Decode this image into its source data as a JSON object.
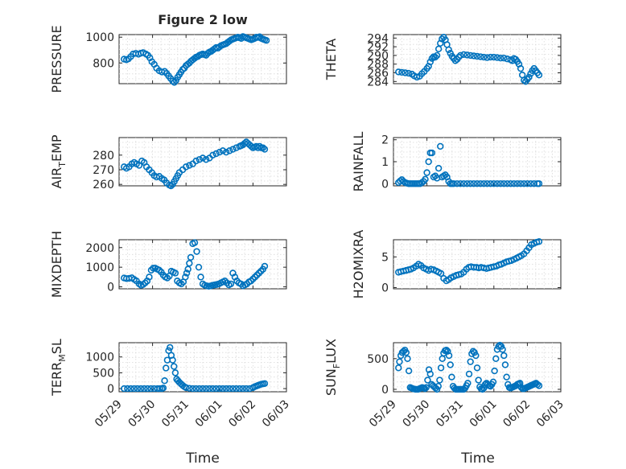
{
  "figure": {
    "title": "Figure 2 low",
    "xlabel": "Time"
  },
  "colors": {
    "marker": "#0072BD",
    "axis": "#262626",
    "grid": "#d9d9d9"
  },
  "x_ticks": [
    "05/29",
    "05/30",
    "05/31",
    "06/01",
    "06/02",
    "06/03"
  ],
  "chart_data": [
    {
      "type": "scatter",
      "marker": "o",
      "title": "Figure 2 low",
      "xlabel": "",
      "ylabel": "PRESSURE",
      "ylabel_sub": "",
      "ylabel_tail": "",
      "ylim": [
        640,
        1020
      ],
      "yticks": [
        800,
        1000
      ],
      "xlim": [
        0,
        5
      ],
      "grid": true,
      "x": [
        0.15,
        0.22,
        0.28,
        0.35,
        0.42,
        0.5,
        0.58,
        0.65,
        0.72,
        0.8,
        0.86,
        0.92,
        0.98,
        1.05,
        1.12,
        1.2,
        1.28,
        1.36,
        1.42,
        1.48,
        1.54,
        1.6,
        1.65,
        1.7,
        1.75,
        1.8,
        1.85,
        1.9,
        1.95,
        2.0,
        2.05,
        2.1,
        2.15,
        2.2,
        2.25,
        2.3,
        2.35,
        2.4,
        2.45,
        2.5,
        2.55,
        2.6,
        2.65,
        2.7,
        2.75,
        2.8,
        2.85,
        2.9,
        2.95,
        3.0,
        3.05,
        3.1,
        3.15,
        3.2,
        3.25,
        3.3,
        3.35,
        3.4,
        3.45,
        3.5,
        3.55,
        3.6,
        3.65,
        3.7,
        3.75,
        3.8,
        3.85,
        3.9,
        3.95,
        4.0,
        4.05,
        4.1,
        4.15,
        4.2,
        4.25,
        4.3,
        4.35,
        4.4
      ],
      "y": [
        830,
        825,
        832,
        850,
        870,
        875,
        868,
        876,
        880,
        870,
        860,
        840,
        810,
        790,
        760,
        740,
        730,
        735,
        720,
        700,
        680,
        660,
        650,
        665,
        690,
        710,
        730,
        750,
        760,
        780,
        790,
        800,
        815,
        825,
        835,
        845,
        850,
        860,
        865,
        870,
        865,
        860,
        875,
        885,
        890,
        900,
        910,
        920,
        915,
        925,
        935,
        940,
        945,
        950,
        960,
        970,
        980,
        985,
        990,
        995,
        1000,
        995,
        990,
        1005,
        1000,
        995,
        990,
        985,
        980,
        985,
        990,
        1000,
        998,
        1003,
        990,
        985,
        980,
        975
      ]
    },
    {
      "type": "scatter",
      "marker": "o",
      "title": "",
      "xlabel": "",
      "ylabel": "THETA",
      "ylabel_sub": "",
      "ylabel_tail": "",
      "ylim": [
        283.5,
        294.8
      ],
      "yticks": [
        284,
        286,
        288,
        290,
        292,
        294
      ],
      "xlim": [
        0,
        5
      ],
      "grid": true,
      "x": [
        0.15,
        0.25,
        0.35,
        0.45,
        0.55,
        0.62,
        0.7,
        0.78,
        0.85,
        0.92,
        1.0,
        1.05,
        1.1,
        1.15,
        1.2,
        1.25,
        1.3,
        1.35,
        1.4,
        1.45,
        1.5,
        1.55,
        1.6,
        1.65,
        1.7,
        1.75,
        1.8,
        1.85,
        1.9,
        1.95,
        2.0,
        2.1,
        2.2,
        2.3,
        2.4,
        2.5,
        2.6,
        2.7,
        2.8,
        2.9,
        3.0,
        3.1,
        3.2,
        3.3,
        3.4,
        3.5,
        3.55,
        3.6,
        3.65,
        3.7,
        3.75,
        3.8,
        3.85,
        3.9,
        3.95,
        4.0,
        4.05,
        4.1,
        4.15,
        4.2,
        4.25,
        4.3,
        4.35
      ],
      "y": [
        286.2,
        286.1,
        286,
        285.9,
        285.7,
        285.3,
        285,
        285.2,
        285.8,
        286.3,
        287,
        287.5,
        288.5,
        289.3,
        289.7,
        289.6,
        290,
        291.5,
        292.8,
        293.8,
        294.2,
        293.6,
        292.5,
        291.3,
        290.5,
        289.8,
        289.3,
        288.8,
        289.1,
        289.6,
        290,
        290.2,
        290.1,
        290,
        289.9,
        289.8,
        289.7,
        289.6,
        289.5,
        289.6,
        289.6,
        289.5,
        289.4,
        289.4,
        289.2,
        289,
        288.8,
        289.3,
        289.1,
        288.6,
        288,
        287,
        285.5,
        284.3,
        284,
        284.5,
        285,
        285.8,
        286.5,
        287,
        286.5,
        286,
        285.5
      ]
    },
    {
      "type": "scatter",
      "marker": "o",
      "title": "",
      "xlabel": "",
      "ylabel": "AIR",
      "ylabel_sub": "T",
      "ylabel_tail": "EMP",
      "ylim": [
        259,
        292
      ],
      "yticks": [
        260,
        270,
        280
      ],
      "xlim": [
        0,
        5
      ],
      "grid": true,
      "x": [
        0.15,
        0.22,
        0.3,
        0.38,
        0.45,
        0.52,
        0.6,
        0.68,
        0.75,
        0.82,
        0.9,
        0.98,
        1.05,
        1.12,
        1.2,
        1.28,
        1.35,
        1.42,
        1.5,
        1.55,
        1.6,
        1.65,
        1.7,
        1.75,
        1.8,
        1.9,
        2.0,
        2.1,
        2.2,
        2.3,
        2.4,
        2.5,
        2.6,
        2.7,
        2.8,
        2.9,
        3.0,
        3.1,
        3.2,
        3.3,
        3.4,
        3.5,
        3.6,
        3.65,
        3.7,
        3.75,
        3.8,
        3.85,
        3.9,
        3.95,
        4.0,
        4.05,
        4.1,
        4.15,
        4.2,
        4.25,
        4.3,
        4.35
      ],
      "y": [
        272,
        271,
        272,
        274,
        275,
        274,
        273,
        276,
        275,
        272,
        270,
        268,
        266,
        265,
        265.5,
        264,
        263,
        261,
        259.5,
        259,
        260,
        262,
        264,
        266,
        268,
        270,
        272,
        273,
        274,
        276,
        277,
        278,
        277,
        278,
        280,
        281,
        282,
        283,
        282,
        283,
        284,
        285,
        286,
        286.5,
        287,
        288,
        289,
        288,
        287,
        286,
        285,
        285.5,
        286,
        285,
        286,
        285,
        285,
        284
      ]
    },
    {
      "type": "scatter",
      "marker": "o",
      "title": "",
      "xlabel": "",
      "ylabel": "RAINFALL",
      "ylabel_sub": "",
      "ylabel_tail": "",
      "ylim": [
        -0.1,
        2.1
      ],
      "yticks": [
        0,
        1,
        2
      ],
      "xlim": [
        0,
        5
      ],
      "grid": true,
      "x": [
        0.15,
        0.2,
        0.25,
        0.3,
        0.35,
        0.4,
        0.45,
        0.5,
        0.55,
        0.6,
        0.65,
        0.7,
        0.75,
        0.8,
        0.85,
        0.9,
        0.95,
        1.0,
        1.05,
        1.1,
        1.15,
        1.2,
        1.25,
        1.3,
        1.35,
        1.4,
        1.45,
        1.5,
        1.55,
        1.6,
        1.65,
        1.7,
        1.75,
        1.8,
        1.9,
        2.0,
        2.1,
        2.2,
        2.3,
        2.4,
        2.5,
        2.6,
        2.7,
        2.8,
        2.9,
        3.0,
        3.1,
        3.2,
        3.3,
        3.4,
        3.5,
        3.6,
        3.7,
        3.8,
        3.9,
        4.0,
        4.1,
        4.2,
        4.3,
        4.35
      ],
      "y": [
        0.05,
        0.12,
        0.18,
        0.1,
        0.05,
        0.02,
        0,
        0,
        0,
        0,
        0,
        0,
        0,
        0,
        0.05,
        0.1,
        0.2,
        0.5,
        1.0,
        1.4,
        1.4,
        0.3,
        0.35,
        0.25,
        0.7,
        1.7,
        0.3,
        0.35,
        0.4,
        0.3,
        0.1,
        0,
        0,
        0,
        0,
        0,
        0,
        0,
        0,
        0,
        0,
        0,
        0,
        0,
        0,
        0,
        0,
        0,
        0,
        0,
        0,
        0,
        0,
        0,
        0,
        0,
        0,
        0,
        0,
        0
      ]
    },
    {
      "type": "scatter",
      "marker": "o",
      "title": "",
      "xlabel": "",
      "ylabel": "MIXDEPTH",
      "ylabel_sub": "",
      "ylabel_tail": "",
      "ylim": [
        -100,
        2400
      ],
      "yticks": [
        0,
        1000,
        2000
      ],
      "xlim": [
        0,
        5
      ],
      "grid": true,
      "x": [
        0.15,
        0.22,
        0.3,
        0.38,
        0.45,
        0.52,
        0.6,
        0.66,
        0.72,
        0.78,
        0.84,
        0.9,
        0.96,
        1.02,
        1.08,
        1.14,
        1.2,
        1.26,
        1.32,
        1.38,
        1.44,
        1.5,
        1.56,
        1.62,
        1.68,
        1.74,
        1.8,
        1.86,
        1.92,
        1.98,
        2.02,
        2.06,
        2.1,
        2.14,
        2.2,
        2.26,
        2.32,
        2.38,
        2.44,
        2.5,
        2.56,
        2.62,
        2.68,
        2.74,
        2.8,
        2.86,
        2.92,
        2.98,
        3.04,
        3.1,
        3.16,
        3.22,
        3.28,
        3.34,
        3.4,
        3.46,
        3.52,
        3.58,
        3.64,
        3.7,
        3.76,
        3.82,
        3.88,
        3.94,
        4.0,
        4.06,
        4.12,
        4.18,
        4.24,
        4.3,
        4.35
      ],
      "y": [
        450,
        420,
        430,
        460,
        380,
        300,
        150,
        80,
        120,
        200,
        300,
        500,
        850,
        950,
        950,
        900,
        850,
        750,
        600,
        500,
        450,
        550,
        800,
        750,
        700,
        300,
        200,
        150,
        250,
        500,
        700,
        900,
        1200,
        1500,
        2200,
        2250,
        1800,
        1000,
        500,
        150,
        80,
        50,
        30,
        50,
        80,
        100,
        120,
        150,
        200,
        250,
        300,
        200,
        100,
        150,
        700,
        500,
        300,
        200,
        150,
        50,
        100,
        150,
        250,
        300,
        400,
        500,
        600,
        700,
        800,
        900,
        1050
      ]
    },
    {
      "type": "scatter",
      "marker": "o",
      "title": "",
      "xlabel": "",
      "ylabel": "H2OMIXRA",
      "ylabel_sub": "",
      "ylabel_tail": "",
      "ylim": [
        -0.2,
        7.8
      ],
      "yticks": [
        0,
        5
      ],
      "xlim": [
        0,
        5
      ],
      "grid": true,
      "x": [
        0.15,
        0.22,
        0.3,
        0.38,
        0.45,
        0.52,
        0.6,
        0.68,
        0.75,
        0.82,
        0.9,
        0.98,
        1.05,
        1.12,
        1.2,
        1.28,
        1.35,
        1.42,
        1.5,
        1.58,
        1.65,
        1.72,
        1.8,
        1.88,
        1.95,
        2.02,
        2.1,
        2.18,
        2.25,
        2.32,
        2.4,
        2.48,
        2.55,
        2.62,
        2.7,
        2.78,
        2.85,
        2.92,
        3.0,
        3.08,
        3.15,
        3.22,
        3.3,
        3.38,
        3.45,
        3.52,
        3.6,
        3.68,
        3.75,
        3.82,
        3.9,
        3.98,
        4.05,
        4.12,
        4.2,
        4.28,
        4.35
      ],
      "y": [
        2.5,
        2.6,
        2.7,
        2.8,
        2.9,
        3.0,
        3.2,
        3.5,
        3.8,
        3.6,
        3.2,
        3.0,
        2.8,
        3.0,
        2.9,
        2.7,
        2.5,
        2.3,
        1.5,
        1.1,
        1.3,
        1.6,
        1.8,
        2.0,
        2.1,
        2.2,
        2.5,
        3.0,
        3.3,
        3.4,
        3.3,
        3.3,
        3.2,
        3.3,
        3.2,
        3.1,
        3.2,
        3.3,
        3.4,
        3.5,
        3.7,
        3.8,
        4.0,
        4.2,
        4.3,
        4.4,
        4.6,
        4.8,
        5.0,
        5.2,
        5.5,
        6.0,
        6.5,
        7.0,
        7.2,
        7.4,
        7.5
      ]
    },
    {
      "type": "scatter",
      "marker": "o",
      "title": "",
      "xlabel": "",
      "ylabel": "TERR",
      "ylabel_sub": "M",
      "ylabel_tail": "SL",
      "ylim": [
        -100,
        1450
      ],
      "yticks": [
        0,
        500,
        1000
      ],
      "xlim": [
        0,
        5
      ],
      "grid": true,
      "x": [
        0.15,
        0.25,
        0.35,
        0.45,
        0.55,
        0.65,
        0.75,
        0.85,
        0.95,
        1.05,
        1.15,
        1.22,
        1.28,
        1.32,
        1.36,
        1.4,
        1.44,
        1.48,
        1.52,
        1.56,
        1.6,
        1.64,
        1.68,
        1.72,
        1.76,
        1.8,
        1.85,
        1.9,
        1.95,
        2.0,
        2.1,
        2.2,
        2.3,
        2.4,
        2.5,
        2.6,
        2.7,
        2.8,
        2.9,
        3.0,
        3.1,
        3.2,
        3.3,
        3.4,
        3.5,
        3.6,
        3.7,
        3.8,
        3.9,
        4.0,
        4.05,
        4.1,
        4.15,
        4.2,
        4.25,
        4.3,
        4.35
      ],
      "y": [
        0,
        0,
        0,
        0,
        0,
        0,
        0,
        0,
        0,
        0,
        0,
        0,
        0,
        20,
        250,
        650,
        900,
        1200,
        1300,
        1050,
        900,
        700,
        500,
        300,
        250,
        200,
        150,
        100,
        60,
        30,
        10,
        0,
        0,
        0,
        0,
        0,
        0,
        0,
        0,
        0,
        0,
        0,
        0,
        0,
        0,
        0,
        0,
        0,
        0,
        30,
        60,
        80,
        100,
        120,
        140,
        150,
        160
      ]
    },
    {
      "type": "scatter",
      "marker": "o",
      "title": "",
      "xlabel": "",
      "ylabel": "SUN",
      "ylabel_sub": "F",
      "ylabel_tail": "LUX",
      "ylim": [
        -40,
        760
      ],
      "yticks": [
        0,
        500
      ],
      "xlim": [
        0,
        5
      ],
      "grid": true,
      "x": [
        0.15,
        0.18,
        0.22,
        0.26,
        0.3,
        0.34,
        0.38,
        0.42,
        0.46,
        0.5,
        0.54,
        0.58,
        0.62,
        0.66,
        0.7,
        0.74,
        0.78,
        0.82,
        0.86,
        0.9,
        0.94,
        0.98,
        1.02,
        1.06,
        1.1,
        1.14,
        1.18,
        1.22,
        1.26,
        1.3,
        1.34,
        1.38,
        1.42,
        1.46,
        1.5,
        1.54,
        1.58,
        1.62,
        1.66,
        1.7,
        1.74,
        1.78,
        1.82,
        1.86,
        1.9,
        1.94,
        1.98,
        2.02,
        2.06,
        2.1,
        2.14,
        2.18,
        2.22,
        2.26,
        2.3,
        2.34,
        2.38,
        2.42,
        2.46,
        2.5,
        2.54,
        2.58,
        2.62,
        2.66,
        2.7,
        2.74,
        2.78,
        2.82,
        2.86,
        2.9,
        2.94,
        2.98,
        3.02,
        3.06,
        3.1,
        3.14,
        3.18,
        3.22,
        3.26,
        3.3,
        3.34,
        3.38,
        3.42,
        3.46,
        3.5,
        3.54,
        3.58,
        3.62,
        3.66,
        3.7,
        3.74,
        3.78,
        3.82,
        3.86,
        3.9,
        3.94,
        3.98,
        4.02,
        4.06,
        4.1,
        4.14,
        4.18,
        4.22,
        4.26,
        4.3,
        4.35
      ],
      "y": [
        350,
        450,
        550,
        600,
        620,
        640,
        600,
        500,
        300,
        30,
        20,
        10,
        5,
        0,
        0,
        0,
        10,
        20,
        30,
        20,
        10,
        30,
        150,
        320,
        250,
        80,
        60,
        40,
        20,
        0,
        50,
        150,
        350,
        500,
        590,
        630,
        640,
        620,
        550,
        400,
        200,
        50,
        20,
        0,
        0,
        0,
        0,
        0,
        0,
        0,
        20,
        60,
        100,
        250,
        450,
        580,
        620,
        600,
        550,
        350,
        150,
        40,
        10,
        0,
        20,
        80,
        100,
        80,
        60,
        50,
        80,
        120,
        300,
        500,
        650,
        700,
        720,
        700,
        650,
        550,
        400,
        200,
        80,
        30,
        20,
        30,
        40,
        50,
        60,
        80,
        90,
        100,
        30,
        10,
        10,
        20,
        30,
        40,
        50,
        60,
        70,
        80,
        90,
        100,
        80,
        60
      ]
    }
  ]
}
